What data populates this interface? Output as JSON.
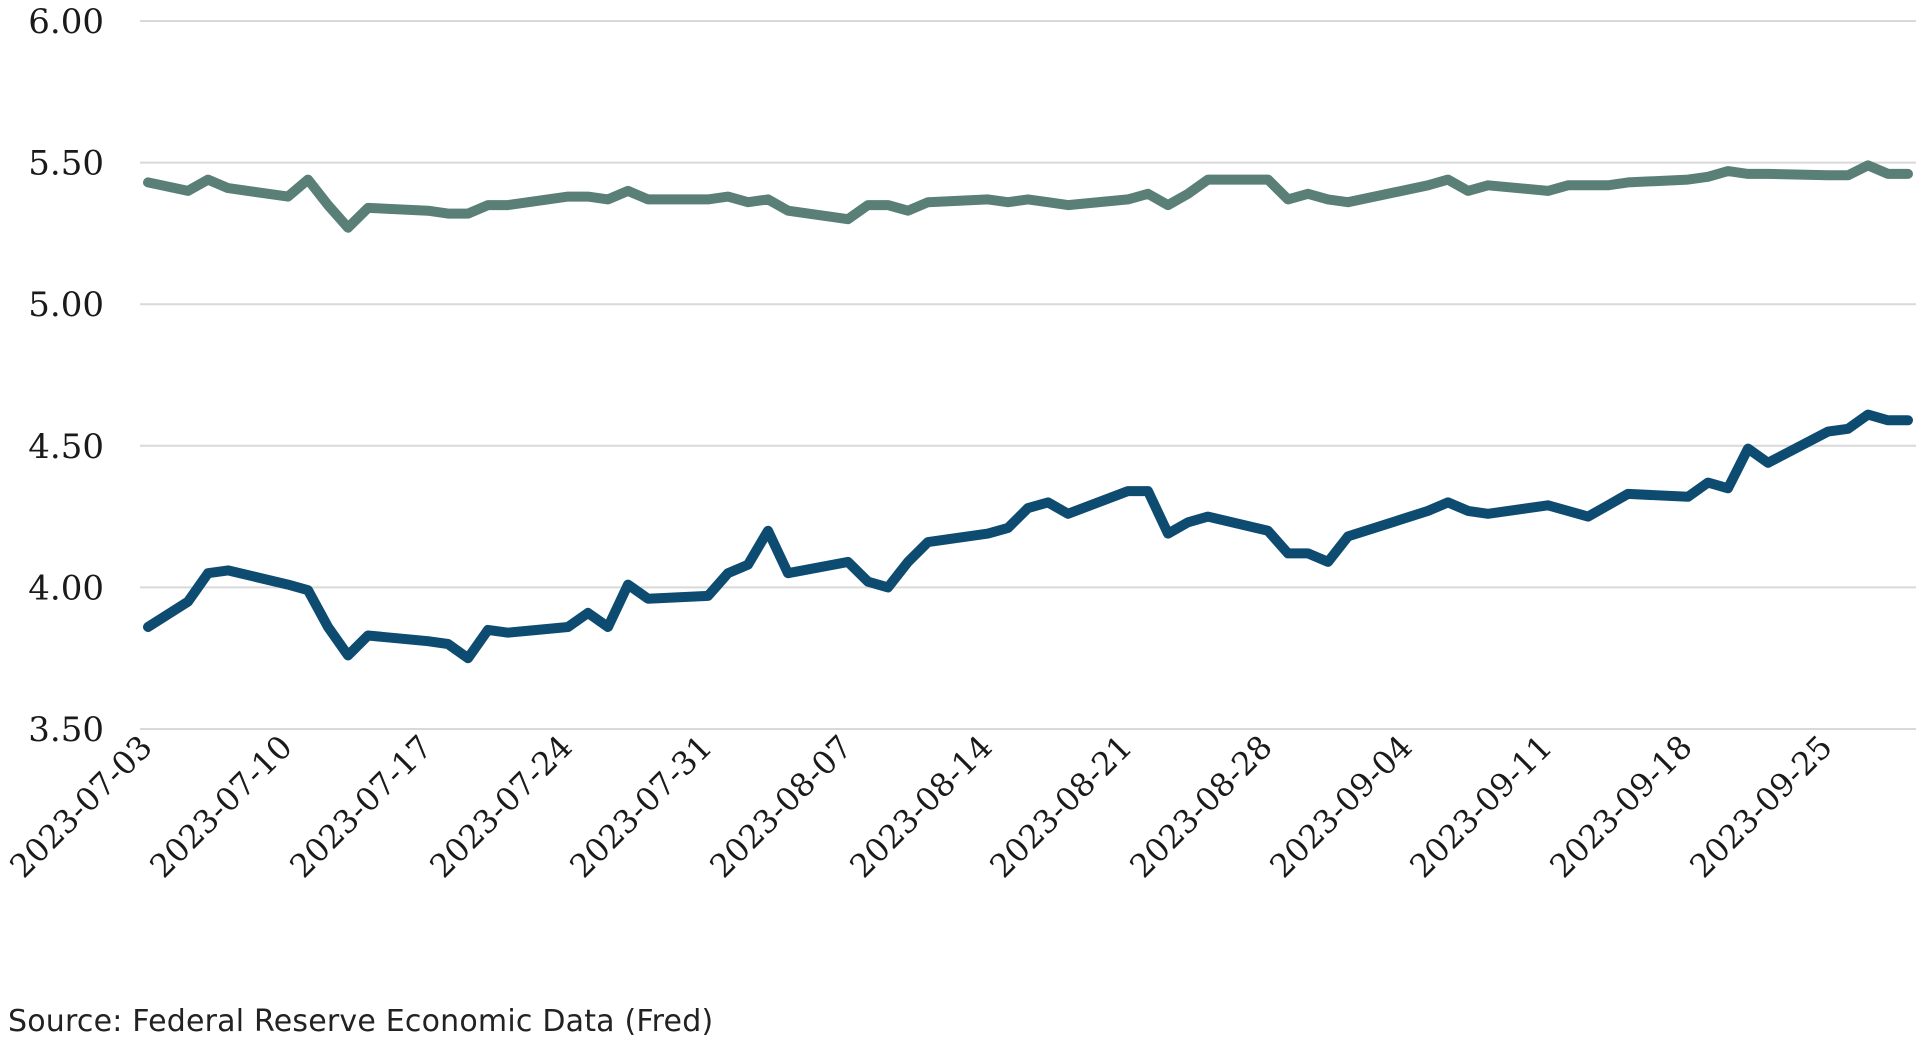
{
  "chart_data": {
    "type": "line",
    "ylim": [
      3.5,
      6.0
    ],
    "y_ticks": [
      "3.50",
      "4.00",
      "4.50",
      "5.00",
      "5.50",
      "6.00"
    ],
    "x_tick_labels": [
      "2023-07-03",
      "2023-07-10",
      "2023-07-17",
      "2023-07-24",
      "2023-07-31",
      "2023-08-07",
      "2023-08-14",
      "2023-08-21",
      "2023-08-28",
      "2023-09-04",
      "2023-09-11",
      "2023-09-18",
      "2023-09-25"
    ],
    "x_range": [
      "2023-07-03",
      "2023-09-29"
    ],
    "grid": "horizontal",
    "legend": "none",
    "series": [
      {
        "color": "#5a7f76",
        "points": [
          [
            "2023-07-03",
            5.43
          ],
          [
            "2023-07-05",
            5.4
          ],
          [
            "2023-07-06",
            5.44
          ],
          [
            "2023-07-07",
            5.41
          ],
          [
            "2023-07-10",
            5.38
          ],
          [
            "2023-07-11",
            5.44
          ],
          [
            "2023-07-12",
            5.35
          ],
          [
            "2023-07-13",
            5.27
          ],
          [
            "2023-07-14",
            5.34
          ],
          [
            "2023-07-17",
            5.33
          ],
          [
            "2023-07-18",
            5.32
          ],
          [
            "2023-07-19",
            5.32
          ],
          [
            "2023-07-20",
            5.35
          ],
          [
            "2023-07-21",
            5.35
          ],
          [
            "2023-07-24",
            5.38
          ],
          [
            "2023-07-25",
            5.38
          ],
          [
            "2023-07-26",
            5.37
          ],
          [
            "2023-07-27",
            5.4
          ],
          [
            "2023-07-28",
            5.37
          ],
          [
            "2023-07-31",
            5.37
          ],
          [
            "2023-08-01",
            5.38
          ],
          [
            "2023-08-02",
            5.36
          ],
          [
            "2023-08-03",
            5.37
          ],
          [
            "2023-08-04",
            5.33
          ],
          [
            "2023-08-07",
            5.3
          ],
          [
            "2023-08-08",
            5.35
          ],
          [
            "2023-08-09",
            5.35
          ],
          [
            "2023-08-10",
            5.33
          ],
          [
            "2023-08-11",
            5.36
          ],
          [
            "2023-08-14",
            5.37
          ],
          [
            "2023-08-15",
            5.36
          ],
          [
            "2023-08-16",
            5.37
          ],
          [
            "2023-08-17",
            5.36
          ],
          [
            "2023-08-18",
            5.35
          ],
          [
            "2023-08-21",
            5.37
          ],
          [
            "2023-08-22",
            5.39
          ],
          [
            "2023-08-23",
            5.35
          ],
          [
            "2023-08-24",
            5.39
          ],
          [
            "2023-08-25",
            5.44
          ],
          [
            "2023-08-28",
            5.44
          ],
          [
            "2023-08-29",
            5.37
          ],
          [
            "2023-08-30",
            5.39
          ],
          [
            "2023-08-31",
            5.37
          ],
          [
            "2023-09-01",
            5.36
          ],
          [
            "2023-09-05",
            5.42
          ],
          [
            "2023-09-06",
            5.44
          ],
          [
            "2023-09-07",
            5.4
          ],
          [
            "2023-09-08",
            5.42
          ],
          [
            "2023-09-11",
            5.4
          ],
          [
            "2023-09-12",
            5.42
          ],
          [
            "2023-09-13",
            5.42
          ],
          [
            "2023-09-14",
            5.42
          ],
          [
            "2023-09-15",
            5.43
          ],
          [
            "2023-09-18",
            5.44
          ],
          [
            "2023-09-19",
            5.45
          ],
          [
            "2023-09-20",
            5.47
          ],
          [
            "2023-09-21",
            5.46
          ],
          [
            "2023-09-22",
            5.46
          ],
          [
            "2023-09-25",
            5.455
          ],
          [
            "2023-09-26",
            5.455
          ],
          [
            "2023-09-27",
            5.49
          ],
          [
            "2023-09-28",
            5.46
          ],
          [
            "2023-09-29",
            5.46
          ]
        ]
      },
      {
        "color": "#0d4c70",
        "points": [
          [
            "2023-07-03",
            3.86
          ],
          [
            "2023-07-05",
            3.95
          ],
          [
            "2023-07-06",
            4.05
          ],
          [
            "2023-07-07",
            4.06
          ],
          [
            "2023-07-10",
            4.01
          ],
          [
            "2023-07-11",
            3.99
          ],
          [
            "2023-07-12",
            3.86
          ],
          [
            "2023-07-13",
            3.76
          ],
          [
            "2023-07-14",
            3.83
          ],
          [
            "2023-07-17",
            3.81
          ],
          [
            "2023-07-18",
            3.8
          ],
          [
            "2023-07-19",
            3.75
          ],
          [
            "2023-07-20",
            3.85
          ],
          [
            "2023-07-21",
            3.84
          ],
          [
            "2023-07-24",
            3.86
          ],
          [
            "2023-07-25",
            3.91
          ],
          [
            "2023-07-26",
            3.86
          ],
          [
            "2023-07-27",
            4.01
          ],
          [
            "2023-07-28",
            3.96
          ],
          [
            "2023-07-31",
            3.97
          ],
          [
            "2023-08-01",
            4.05
          ],
          [
            "2023-08-02",
            4.08
          ],
          [
            "2023-08-03",
            4.2
          ],
          [
            "2023-08-04",
            4.05
          ],
          [
            "2023-08-07",
            4.09
          ],
          [
            "2023-08-08",
            4.02
          ],
          [
            "2023-08-09",
            4.0
          ],
          [
            "2023-08-10",
            4.09
          ],
          [
            "2023-08-11",
            4.16
          ],
          [
            "2023-08-14",
            4.19
          ],
          [
            "2023-08-15",
            4.21
          ],
          [
            "2023-08-16",
            4.28
          ],
          [
            "2023-08-17",
            4.3
          ],
          [
            "2023-08-18",
            4.26
          ],
          [
            "2023-08-21",
            4.34
          ],
          [
            "2023-08-22",
            4.34
          ],
          [
            "2023-08-23",
            4.19
          ],
          [
            "2023-08-24",
            4.23
          ],
          [
            "2023-08-25",
            4.25
          ],
          [
            "2023-08-28",
            4.2
          ],
          [
            "2023-08-29",
            4.12
          ],
          [
            "2023-08-30",
            4.12
          ],
          [
            "2023-08-31",
            4.09
          ],
          [
            "2023-09-01",
            4.18
          ],
          [
            "2023-09-05",
            4.27
          ],
          [
            "2023-09-06",
            4.3
          ],
          [
            "2023-09-07",
            4.27
          ],
          [
            "2023-09-08",
            4.26
          ],
          [
            "2023-09-11",
            4.29
          ],
          [
            "2023-09-12",
            4.27
          ],
          [
            "2023-09-13",
            4.25
          ],
          [
            "2023-09-14",
            4.29
          ],
          [
            "2023-09-15",
            4.33
          ],
          [
            "2023-09-18",
            4.32
          ],
          [
            "2023-09-19",
            4.37
          ],
          [
            "2023-09-20",
            4.35
          ],
          [
            "2023-09-21",
            4.49
          ],
          [
            "2023-09-22",
            4.44
          ],
          [
            "2023-09-25",
            4.55
          ],
          [
            "2023-09-26",
            4.56
          ],
          [
            "2023-09-27",
            4.61
          ],
          [
            "2023-09-28",
            4.59
          ],
          [
            "2023-09-29",
            4.59
          ]
        ]
      }
    ]
  },
  "source_note": "Source: Federal Reserve Economic Data (Fred)"
}
